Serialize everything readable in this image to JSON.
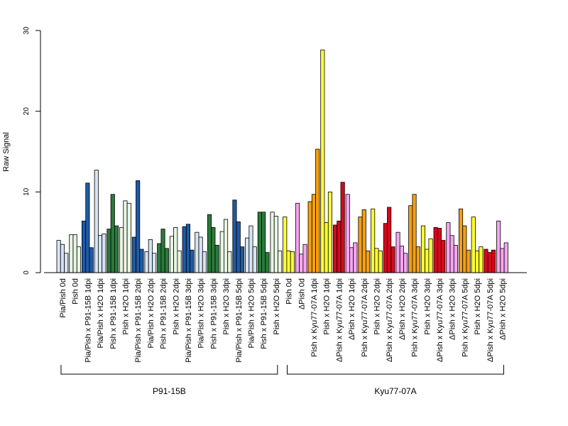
{
  "chart_data": {
    "type": "bar",
    "ylabel": "Raw Signal",
    "xlabel": "",
    "ylim": [
      0,
      30
    ],
    "yticks": [
      0,
      10,
      20,
      30
    ],
    "grid": false,
    "legend": "none",
    "categories": [
      {
        "label": "Pia/Pish 0d",
        "color": "#d6e4f3",
        "values": [
          4.0,
          3.5,
          2.4
        ]
      },
      {
        "label": "Pish 0d",
        "color": "#e8f5e2",
        "values": [
          4.7,
          4.7,
          3.2
        ]
      },
      {
        "label": "Pia/Pish x P91-15B 1dpi",
        "color": "#1f5aa6",
        "values": [
          6.4,
          11.1,
          3.1
        ]
      },
      {
        "label": "Pia/Pish x H2O 1dpi",
        "color": "#d6e4f3",
        "values": [
          12.7,
          4.6,
          4.8
        ]
      },
      {
        "label": "Pish x P91-15B 1dpi",
        "color": "#2a7a3a",
        "values": [
          5.4,
          9.7,
          5.8
        ]
      },
      {
        "label": "Pish x H2O 1dpi",
        "color": "#e8f5e2",
        "values": [
          5.6,
          8.9,
          8.6
        ]
      },
      {
        "label": "Pia/Pish x P91-15B 2dpi",
        "color": "#1f5aa6",
        "values": [
          4.4,
          11.4,
          2.9
        ]
      },
      {
        "label": "Pia/Pish x H2O 2dpi",
        "color": "#d6e4f3",
        "values": [
          2.6,
          4.1,
          2.4
        ]
      },
      {
        "label": "Pish x P91-15B 2dpi",
        "color": "#2a7a3a",
        "values": [
          3.6,
          5.4,
          3.0
        ]
      },
      {
        "label": "Pish x H2O 2dpi",
        "color": "#e8f5e2",
        "values": [
          4.5,
          5.6,
          2.7
        ]
      },
      {
        "label": "Pia/Pish x P91-15B 3dpi",
        "color": "#1f5aa6",
        "values": [
          5.7,
          6.0,
          2.8
        ]
      },
      {
        "label": "Pia/Pish x H2O 3dpi",
        "color": "#d6e4f3",
        "values": [
          5.0,
          4.4,
          2.6
        ]
      },
      {
        "label": "Pish x P91-15B 3dpi",
        "color": "#2a7a3a",
        "values": [
          7.2,
          5.6,
          3.4
        ]
      },
      {
        "label": "Pish x H2O 3dpi",
        "color": "#e8f5e2",
        "values": [
          5.1,
          6.6,
          2.6
        ]
      },
      {
        "label": "Pia/Pish x P91-15B 5dpi",
        "color": "#1f5aa6",
        "values": [
          9.0,
          6.3,
          3.2
        ]
      },
      {
        "label": "Pia/Pish x H2O 5dpi",
        "color": "#d6e4f3",
        "values": [
          4.3,
          5.8,
          3.2
        ]
      },
      {
        "label": "Pish x P91-15B 5dpi",
        "color": "#2a7a3a",
        "values": [
          7.5,
          7.5,
          2.5
        ]
      },
      {
        "label": "Pish x H2O 5dpi",
        "color": "#e8f5e2",
        "values": [
          7.5,
          7.0,
          2.7
        ]
      },
      {
        "label": "Pish 0d",
        "color": "#ffff33",
        "values": [
          6.9,
          2.7,
          2.6
        ]
      },
      {
        "label": "ΔPish 0d",
        "color": "#f5a6f0",
        "values": [
          8.6,
          2.3,
          3.5
        ]
      },
      {
        "label": "Pish x Kyu77-07A 1dpi",
        "color": "#f5a013",
        "values": [
          8.8,
          9.7,
          15.3
        ]
      },
      {
        "label": "Pish x H2O 1dpi",
        "color": "#ffff33",
        "values": [
          27.6,
          6.2,
          10.0
        ]
      },
      {
        "label": "ΔPish x Kyu77-07A 1dpi",
        "color": "#d6081c",
        "values": [
          5.9,
          6.4,
          11.2
        ]
      },
      {
        "label": "ΔPish x H2O 1dpi",
        "color": "#f5a6f0",
        "values": [
          9.7,
          3.1,
          3.7
        ]
      },
      {
        "label": "Pish x Kyu77-07A 2dpi",
        "color": "#f5a013",
        "values": [
          6.9,
          7.8,
          2.7
        ]
      },
      {
        "label": "Pish x H2O 2dpi",
        "color": "#ffff33",
        "values": [
          7.9,
          3.0,
          2.7
        ]
      },
      {
        "label": "ΔPish x Kyu77-07A 2dpi",
        "color": "#d6081c",
        "values": [
          6.1,
          8.1,
          3.2
        ]
      },
      {
        "label": "ΔPish x H2O 2dpi",
        "color": "#f5a6f0",
        "values": [
          5.0,
          3.3,
          2.4
        ]
      },
      {
        "label": "Pish x Kyu77-07A 3dpi",
        "color": "#f5a013",
        "values": [
          8.3,
          9.7,
          3.2
        ]
      },
      {
        "label": "Pish x H2O 3dpi",
        "color": "#ffff33",
        "values": [
          5.8,
          2.9,
          4.2
        ]
      },
      {
        "label": "ΔPish x Kyu77-07A 3dpi",
        "color": "#d6081c",
        "values": [
          5.6,
          5.5,
          4.0
        ]
      },
      {
        "label": "ΔPish x H2O 3dpi",
        "color": "#f5a6f0",
        "values": [
          6.2,
          4.6,
          3.4
        ]
      },
      {
        "label": "Pish x Kyu77-07A 5dpi",
        "color": "#f5a013",
        "values": [
          7.9,
          5.8,
          2.8
        ]
      },
      {
        "label": "Pish x H2O 5dpi",
        "color": "#ffff33",
        "values": [
          6.9,
          2.7,
          3.2
        ]
      },
      {
        "label": "ΔPish x Kyu77-07A 5dpi",
        "color": "#d6081c",
        "values": [
          2.9,
          2.5,
          2.8
        ]
      },
      {
        "label": "ΔPish x H2O 5dpi",
        "color": "#f5a6f0",
        "values": [
          6.4,
          3.0,
          3.7
        ]
      }
    ],
    "groups": [
      {
        "label": "P91-15B",
        "first": 0,
        "last": 17
      },
      {
        "label": "Kyu77-07A",
        "first": 18,
        "last": 35
      }
    ]
  }
}
